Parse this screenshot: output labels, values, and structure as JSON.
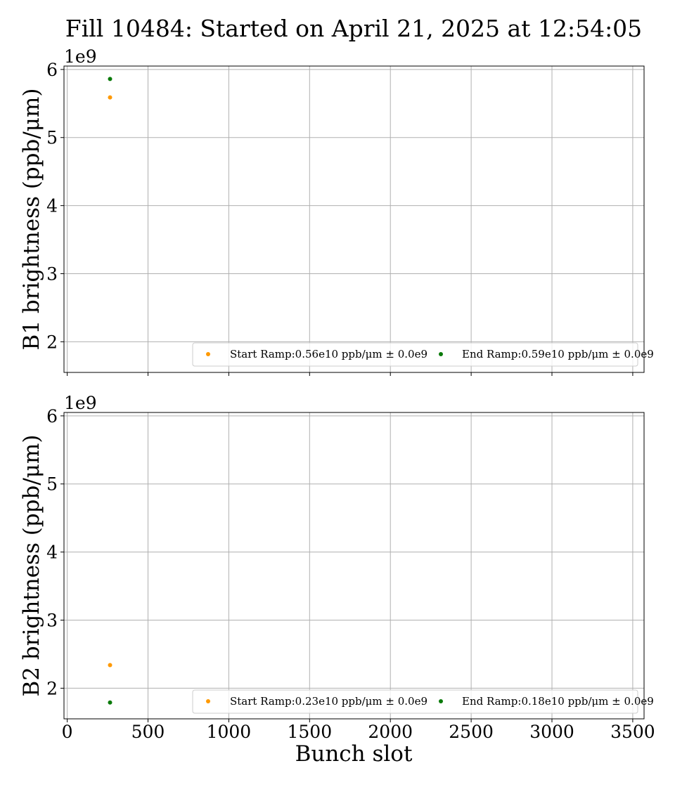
{
  "chart_data": {
    "type": "scatter",
    "title": "Fill 10484: Started on April 21, 2025 at 12:54:05",
    "xlabel": "Bunch slot",
    "xlim": [
      -20,
      3570
    ],
    "x_ticks": [
      0,
      500,
      1000,
      1500,
      2000,
      2500,
      3000,
      3500
    ],
    "grid": true,
    "panels": [
      {
        "ylabel": "B1 brightness (ppb/μm)",
        "y_multiplier": "1e9",
        "ylim": [
          1.55,
          6.05
        ],
        "y_ticks": [
          2,
          3,
          4,
          5,
          6
        ],
        "legend_placement": "lower right",
        "series": [
          {
            "name": "Start Ramp:0.56e10 ppb/μm ± 0.0e9",
            "color": "#ff9900",
            "points": [
              [
                265,
                5.59
              ]
            ]
          },
          {
            "name": "End Ramp:0.59e10 ppb/μm ± 0.0e9",
            "color": "#0a7a0a",
            "points": [
              [
                265,
                5.86
              ]
            ]
          }
        ]
      },
      {
        "ylabel": "B2 brightness (ppb/μm)",
        "y_multiplier": "1e9",
        "ylim": [
          1.55,
          6.05
        ],
        "y_ticks": [
          2,
          3,
          4,
          5,
          6
        ],
        "legend_placement": "lower right",
        "series": [
          {
            "name": "Start Ramp:0.23e10 ppb/μm ± 0.0e9",
            "color": "#ff9900",
            "points": [
              [
                265,
                2.34
              ]
            ]
          },
          {
            "name": "End Ramp:0.18e10 ppb/μm ± 0.0e9",
            "color": "#0a7a0a",
            "points": [
              [
                265,
                1.79
              ]
            ]
          }
        ]
      }
    ]
  }
}
